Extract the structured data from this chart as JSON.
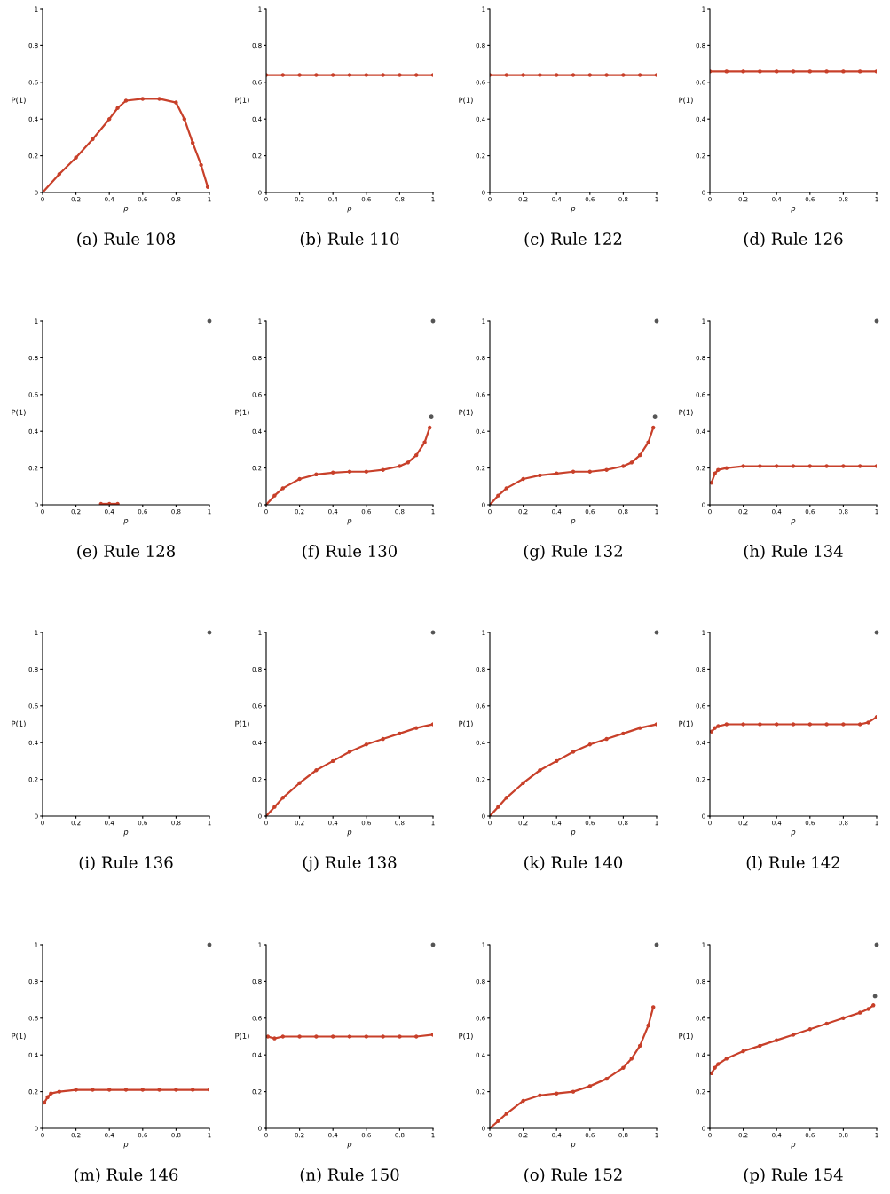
{
  "chart_data": [
    {
      "type": "line",
      "title": "(a) Rule 108",
      "xlabel": "p",
      "ylabel": "P(1)",
      "xlim": [
        0,
        1
      ],
      "ylim": [
        0,
        1
      ],
      "xticks": [
        0,
        0.2,
        0.4,
        0.6,
        0.8,
        1
      ],
      "yticks": [
        0,
        0.2,
        0.4,
        0.6,
        0.8,
        1
      ],
      "marker": "circle",
      "line_style": "solid",
      "series": [
        {
          "type": "line",
          "color": "#c8402a",
          "x": [
            0,
            0.1,
            0.2,
            0.3,
            0.4,
            0.45,
            0.5,
            0.6,
            0.7,
            0.8,
            0.85,
            0.9,
            0.95,
            0.99
          ],
          "values": [
            0,
            0.1,
            0.19,
            0.29,
            0.4,
            0.46,
            0.5,
            0.51,
            0.51,
            0.49,
            0.4,
            0.27,
            0.15,
            0.03
          ]
        }
      ]
    },
    {
      "type": "line",
      "title": "(b) Rule 110",
      "xlabel": "p",
      "ylabel": "P(1)",
      "xlim": [
        0,
        1
      ],
      "ylim": [
        0,
        1
      ],
      "xticks": [
        0,
        0.2,
        0.4,
        0.6,
        0.8,
        1
      ],
      "yticks": [
        0,
        0.2,
        0.4,
        0.6,
        0.8,
        1
      ],
      "marker": "circle",
      "line_style": "solid",
      "series": [
        {
          "type": "line",
          "color": "#c8402a",
          "x": [
            0,
            0.1,
            0.2,
            0.3,
            0.4,
            0.5,
            0.6,
            0.7,
            0.8,
            0.9,
            1
          ],
          "values": [
            0.64,
            0.64,
            0.64,
            0.64,
            0.64,
            0.64,
            0.64,
            0.64,
            0.64,
            0.64,
            0.64
          ]
        }
      ]
    },
    {
      "type": "line",
      "title": "(c) Rule 122",
      "xlabel": "p",
      "ylabel": "P(1)",
      "xlim": [
        0,
        1
      ],
      "ylim": [
        0,
        1
      ],
      "xticks": [
        0,
        0.2,
        0.4,
        0.6,
        0.8,
        1
      ],
      "yticks": [
        0,
        0.2,
        0.4,
        0.6,
        0.8,
        1
      ],
      "marker": "circle",
      "line_style": "solid",
      "series": [
        {
          "type": "line",
          "color": "#c8402a",
          "x": [
            0,
            0.1,
            0.2,
            0.3,
            0.4,
            0.5,
            0.6,
            0.7,
            0.8,
            0.9,
            1
          ],
          "values": [
            0.64,
            0.64,
            0.64,
            0.64,
            0.64,
            0.64,
            0.64,
            0.64,
            0.64,
            0.64,
            0.64
          ]
        }
      ]
    },
    {
      "type": "line",
      "title": "(d) Rule 126",
      "xlabel": "p",
      "ylabel": "P(1)",
      "xlim": [
        0,
        1
      ],
      "ylim": [
        0,
        1
      ],
      "xticks": [
        0,
        0.2,
        0.4,
        0.6,
        0.8,
        1
      ],
      "yticks": [
        0,
        0.2,
        0.4,
        0.6,
        0.8,
        1
      ],
      "marker": "circle",
      "line_style": "solid",
      "series": [
        {
          "type": "line",
          "color": "#c8402a",
          "x": [
            0,
            0.1,
            0.2,
            0.3,
            0.4,
            0.5,
            0.6,
            0.7,
            0.8,
            0.9,
            1
          ],
          "values": [
            0.66,
            0.66,
            0.66,
            0.66,
            0.66,
            0.66,
            0.66,
            0.66,
            0.66,
            0.66,
            0.66
          ]
        }
      ]
    },
    {
      "type": "line",
      "title": "(e) Rule 128",
      "xlabel": "p",
      "ylabel": "P(1)",
      "xlim": [
        0,
        1
      ],
      "ylim": [
        0,
        1
      ],
      "xticks": [
        0,
        0.2,
        0.4,
        0.6,
        0.8,
        1
      ],
      "yticks": [
        0,
        0.2,
        0.4,
        0.6,
        0.8,
        1
      ],
      "marker": "circle",
      "line_style": "solid",
      "series": [
        {
          "type": "line",
          "color": "#c8402a",
          "x": [
            0.35,
            0.4,
            0.45
          ],
          "values": [
            0.005,
            0.005,
            0.005
          ]
        },
        {
          "type": "scatter",
          "color": "#555555",
          "x": [
            1
          ],
          "values": [
            1
          ]
        }
      ]
    },
    {
      "type": "line",
      "title": "(f) Rule 130",
      "xlabel": "p",
      "ylabel": "P(1)",
      "xlim": [
        0,
        1
      ],
      "ylim": [
        0,
        1
      ],
      "xticks": [
        0,
        0.2,
        0.4,
        0.6,
        0.8,
        1
      ],
      "yticks": [
        0,
        0.2,
        0.4,
        0.6,
        0.8,
        1
      ],
      "marker": "circle",
      "line_style": "solid",
      "series": [
        {
          "type": "line",
          "color": "#c8402a",
          "x": [
            0,
            0.05,
            0.1,
            0.2,
            0.3,
            0.4,
            0.5,
            0.6,
            0.7,
            0.8,
            0.85,
            0.9,
            0.95,
            0.98
          ],
          "values": [
            0,
            0.05,
            0.09,
            0.14,
            0.165,
            0.175,
            0.18,
            0.18,
            0.19,
            0.21,
            0.23,
            0.27,
            0.34,
            0.42
          ]
        },
        {
          "type": "scatter",
          "color": "#555555",
          "x": [
            0.99,
            1
          ],
          "values": [
            0.48,
            1
          ]
        }
      ]
    },
    {
      "type": "line",
      "title": "(g) Rule 132",
      "xlabel": "p",
      "ylabel": "P(1)",
      "xlim": [
        0,
        1
      ],
      "ylim": [
        0,
        1
      ],
      "xticks": [
        0,
        0.2,
        0.4,
        0.6,
        0.8,
        1
      ],
      "yticks": [
        0,
        0.2,
        0.4,
        0.6,
        0.8,
        1
      ],
      "marker": "circle",
      "line_style": "solid",
      "series": [
        {
          "type": "line",
          "color": "#c8402a",
          "x": [
            0,
            0.05,
            0.1,
            0.2,
            0.3,
            0.4,
            0.5,
            0.6,
            0.7,
            0.8,
            0.85,
            0.9,
            0.95,
            0.98
          ],
          "values": [
            0,
            0.05,
            0.09,
            0.14,
            0.16,
            0.17,
            0.18,
            0.18,
            0.19,
            0.21,
            0.23,
            0.27,
            0.34,
            0.42
          ]
        },
        {
          "type": "scatter",
          "color": "#555555",
          "x": [
            0.99,
            1
          ],
          "values": [
            0.48,
            1
          ]
        }
      ]
    },
    {
      "type": "line",
      "title": "(h) Rule 134",
      "xlabel": "p",
      "ylabel": "P(1)",
      "xlim": [
        0,
        1
      ],
      "ylim": [
        0,
        1
      ],
      "xticks": [
        0,
        0.2,
        0.4,
        0.6,
        0.8,
        1
      ],
      "yticks": [
        0,
        0.2,
        0.4,
        0.6,
        0.8,
        1
      ],
      "marker": "circle",
      "line_style": "solid",
      "series": [
        {
          "type": "line",
          "color": "#c8402a",
          "x": [
            0.01,
            0.03,
            0.05,
            0.1,
            0.2,
            0.3,
            0.4,
            0.5,
            0.6,
            0.7,
            0.8,
            0.9,
            1
          ],
          "values": [
            0.12,
            0.17,
            0.19,
            0.2,
            0.21,
            0.21,
            0.21,
            0.21,
            0.21,
            0.21,
            0.21,
            0.21,
            0.21
          ]
        },
        {
          "type": "scatter",
          "color": "#555555",
          "x": [
            1
          ],
          "values": [
            1
          ]
        }
      ]
    },
    {
      "type": "line",
      "title": "(i) Rule 136",
      "xlabel": "p",
      "ylabel": "P(1)",
      "xlim": [
        0,
        1
      ],
      "ylim": [
        0,
        1
      ],
      "xticks": [
        0,
        0.2,
        0.4,
        0.6,
        0.8,
        1
      ],
      "yticks": [
        0,
        0.2,
        0.4,
        0.6,
        0.8,
        1
      ],
      "marker": "circle",
      "line_style": "solid",
      "series": [
        {
          "type": "scatter",
          "color": "#555555",
          "x": [
            1
          ],
          "values": [
            1
          ]
        }
      ]
    },
    {
      "type": "line",
      "title": "(j) Rule 138",
      "xlabel": "p",
      "ylabel": "P(1)",
      "xlim": [
        0,
        1
      ],
      "ylim": [
        0,
        1
      ],
      "xticks": [
        0,
        0.2,
        0.4,
        0.6,
        0.8,
        1
      ],
      "yticks": [
        0,
        0.2,
        0.4,
        0.6,
        0.8,
        1
      ],
      "marker": "circle",
      "line_style": "solid",
      "series": [
        {
          "type": "line",
          "color": "#c8402a",
          "x": [
            0,
            0.05,
            0.1,
            0.2,
            0.3,
            0.4,
            0.5,
            0.6,
            0.7,
            0.8,
            0.9,
            1
          ],
          "values": [
            0,
            0.05,
            0.1,
            0.18,
            0.25,
            0.3,
            0.35,
            0.39,
            0.42,
            0.45,
            0.48,
            0.5
          ]
        },
        {
          "type": "scatter",
          "color": "#555555",
          "x": [
            1
          ],
          "values": [
            1
          ]
        }
      ]
    },
    {
      "type": "line",
      "title": "(k) Rule 140",
      "xlabel": "p",
      "ylabel": "P(1)",
      "xlim": [
        0,
        1
      ],
      "ylim": [
        0,
        1
      ],
      "xticks": [
        0,
        0.2,
        0.4,
        0.6,
        0.8,
        1
      ],
      "yticks": [
        0,
        0.2,
        0.4,
        0.6,
        0.8,
        1
      ],
      "marker": "circle",
      "line_style": "solid",
      "series": [
        {
          "type": "line",
          "color": "#c8402a",
          "x": [
            0,
            0.05,
            0.1,
            0.2,
            0.3,
            0.4,
            0.5,
            0.6,
            0.7,
            0.8,
            0.9,
            1
          ],
          "values": [
            0,
            0.05,
            0.1,
            0.18,
            0.25,
            0.3,
            0.35,
            0.39,
            0.42,
            0.45,
            0.48,
            0.5
          ]
        },
        {
          "type": "scatter",
          "color": "#555555",
          "x": [
            1
          ],
          "values": [
            1
          ]
        }
      ]
    },
    {
      "type": "line",
      "title": "(l) Rule 142",
      "xlabel": "p",
      "ylabel": "P(1)",
      "xlim": [
        0,
        1
      ],
      "ylim": [
        0,
        1
      ],
      "xticks": [
        0,
        0.2,
        0.4,
        0.6,
        0.8,
        1
      ],
      "yticks": [
        0,
        0.2,
        0.4,
        0.6,
        0.8,
        1
      ],
      "marker": "circle",
      "line_style": "solid",
      "series": [
        {
          "type": "line",
          "color": "#c8402a",
          "x": [
            0.01,
            0.03,
            0.05,
            0.1,
            0.2,
            0.3,
            0.4,
            0.5,
            0.6,
            0.7,
            0.8,
            0.9,
            0.95,
            1
          ],
          "values": [
            0.46,
            0.48,
            0.49,
            0.5,
            0.5,
            0.5,
            0.5,
            0.5,
            0.5,
            0.5,
            0.5,
            0.5,
            0.51,
            0.54
          ]
        },
        {
          "type": "scatter",
          "color": "#555555",
          "x": [
            1
          ],
          "values": [
            1
          ]
        }
      ]
    },
    {
      "type": "line",
      "title": "(m) Rule 146",
      "xlabel": "p",
      "ylabel": "P(1)",
      "xlim": [
        0,
        1
      ],
      "ylim": [
        0,
        1
      ],
      "xticks": [
        0,
        0.2,
        0.4,
        0.6,
        0.8,
        1
      ],
      "yticks": [
        0,
        0.2,
        0.4,
        0.6,
        0.8,
        1
      ],
      "marker": "circle",
      "line_style": "solid",
      "series": [
        {
          "type": "line",
          "color": "#c8402a",
          "x": [
            0.01,
            0.03,
            0.05,
            0.1,
            0.2,
            0.3,
            0.4,
            0.5,
            0.6,
            0.7,
            0.8,
            0.9,
            1
          ],
          "values": [
            0.14,
            0.17,
            0.19,
            0.2,
            0.21,
            0.21,
            0.21,
            0.21,
            0.21,
            0.21,
            0.21,
            0.21,
            0.21
          ]
        },
        {
          "type": "scatter",
          "color": "#555555",
          "x": [
            1
          ],
          "values": [
            1
          ]
        }
      ]
    },
    {
      "type": "line",
      "title": "(n) Rule 150",
      "xlabel": "p",
      "ylabel": "P(1)",
      "xlim": [
        0,
        1
      ],
      "ylim": [
        0,
        1
      ],
      "xticks": [
        0,
        0.2,
        0.4,
        0.6,
        0.8,
        1
      ],
      "yticks": [
        0,
        0.2,
        0.4,
        0.6,
        0.8,
        1
      ],
      "marker": "circle",
      "line_style": "solid",
      "series": [
        {
          "type": "line",
          "color": "#c8402a",
          "x": [
            0.01,
            0.05,
            0.1,
            0.2,
            0.3,
            0.4,
            0.5,
            0.6,
            0.7,
            0.8,
            0.9,
            1
          ],
          "values": [
            0.5,
            0.49,
            0.5,
            0.5,
            0.5,
            0.5,
            0.5,
            0.5,
            0.5,
            0.5,
            0.5,
            0.51
          ]
        },
        {
          "type": "scatter",
          "color": "#555555",
          "x": [
            1
          ],
          "values": [
            1
          ]
        }
      ]
    },
    {
      "type": "line",
      "title": "(o) Rule 152",
      "xlabel": "p",
      "ylabel": "P(1)",
      "xlim": [
        0,
        1
      ],
      "ylim": [
        0,
        1
      ],
      "xticks": [
        0,
        0.2,
        0.4,
        0.6,
        0.8,
        1
      ],
      "yticks": [
        0,
        0.2,
        0.4,
        0.6,
        0.8,
        1
      ],
      "marker": "circle",
      "line_style": "solid",
      "series": [
        {
          "type": "line",
          "color": "#c8402a",
          "x": [
            0,
            0.05,
            0.1,
            0.2,
            0.3,
            0.4,
            0.5,
            0.6,
            0.7,
            0.8,
            0.85,
            0.9,
            0.95,
            0.98
          ],
          "values": [
            0,
            0.04,
            0.08,
            0.15,
            0.18,
            0.19,
            0.2,
            0.23,
            0.27,
            0.33,
            0.38,
            0.45,
            0.56,
            0.66
          ]
        },
        {
          "type": "scatter",
          "color": "#555555",
          "x": [
            1
          ],
          "values": [
            1
          ]
        }
      ]
    },
    {
      "type": "line",
      "title": "(p) Rule 154",
      "xlabel": "p",
      "ylabel": "P(1)",
      "xlim": [
        0,
        1
      ],
      "ylim": [
        0,
        1
      ],
      "xticks": [
        0,
        0.2,
        0.4,
        0.6,
        0.8,
        1
      ],
      "yticks": [
        0,
        0.2,
        0.4,
        0.6,
        0.8,
        1
      ],
      "marker": "circle",
      "line_style": "solid",
      "series": [
        {
          "type": "line",
          "color": "#c8402a",
          "x": [
            0.01,
            0.03,
            0.05,
            0.1,
            0.2,
            0.3,
            0.4,
            0.5,
            0.6,
            0.7,
            0.8,
            0.9,
            0.95,
            0.98
          ],
          "values": [
            0.3,
            0.33,
            0.35,
            0.38,
            0.42,
            0.45,
            0.48,
            0.51,
            0.54,
            0.57,
            0.6,
            0.63,
            0.65,
            0.67
          ]
        },
        {
          "type": "scatter",
          "color": "#555555",
          "x": [
            0.99,
            1
          ],
          "values": [
            0.72,
            1
          ]
        }
      ]
    }
  ]
}
